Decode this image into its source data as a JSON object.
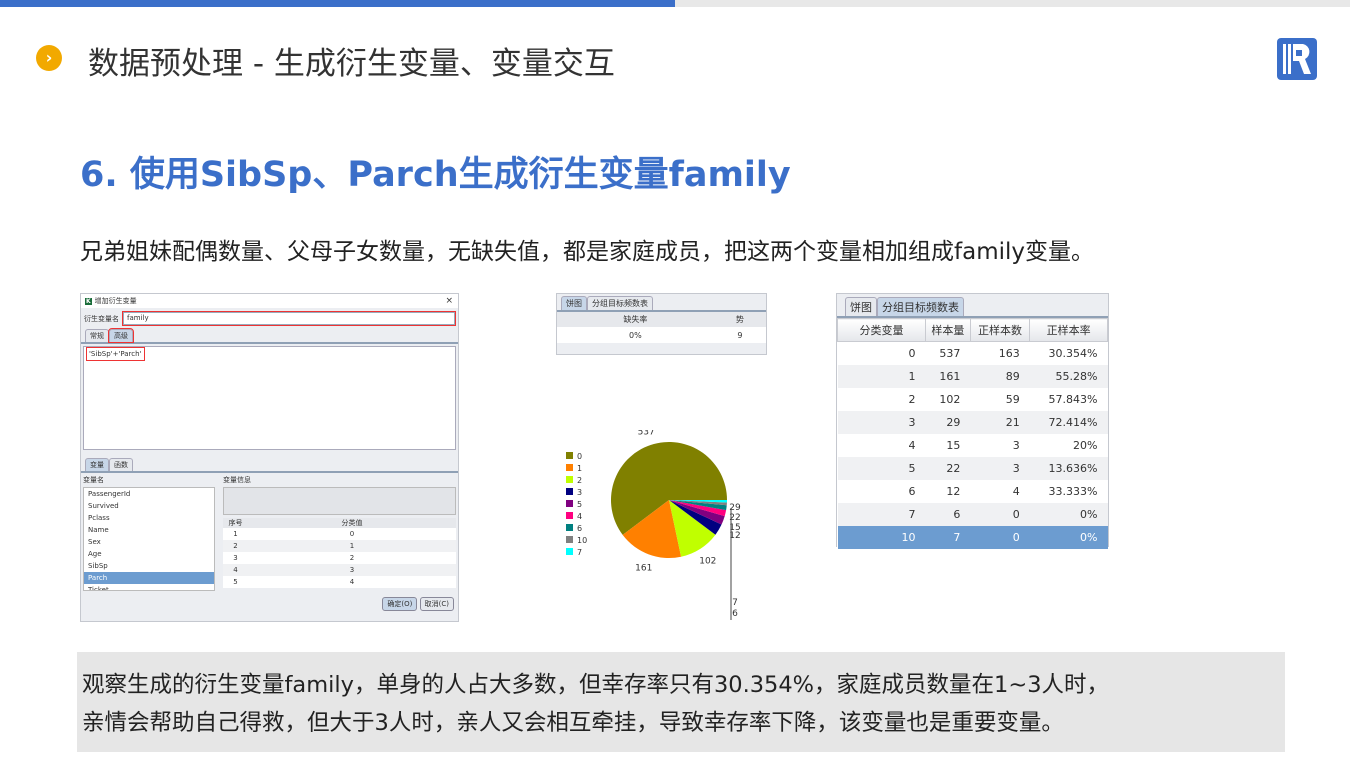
{
  "header": {
    "title": "数据预处理 - 生成衍生变量、变量交互",
    "bullet_icon": "chevron-right-icon",
    "logo_icon": "r-logo"
  },
  "section_title": "6. 使用SibSp、Parch生成衍生变量family",
  "intro": "兄弟姐妹配偶数量、父母子女数量，无缺失值，都是家庭成员，把这两个变量相加组成family变量。",
  "dialog": {
    "title": "增加衍生变量",
    "name_label": "衍生变量名",
    "name_value": "family",
    "tabs": [
      "常规",
      "高级"
    ],
    "expression": "'SibSp'+'Parch'",
    "bottom_tabs": [
      "变量",
      "函数"
    ],
    "var_list_header": "变量名",
    "var_info_header": "变量信息",
    "variables": [
      "PassengerId",
      "Survived",
      "Pclass",
      "Name",
      "Sex",
      "Age",
      "SibSp",
      "Parch",
      "Ticket"
    ],
    "selected_variable": "Parch",
    "value_table": {
      "headers": [
        "序号",
        "分类值"
      ],
      "rows": [
        [
          "1",
          "0"
        ],
        [
          "2",
          "1"
        ],
        [
          "3",
          "2"
        ],
        [
          "4",
          "3"
        ],
        [
          "5",
          "4"
        ]
      ]
    },
    "ok": "确定(O)",
    "cancel": "取消(C)"
  },
  "pie_panel": {
    "tabs": [
      "饼图",
      "分组目标频数表"
    ],
    "headers": [
      "缺失率",
      "势"
    ],
    "values": [
      "0%",
      "9"
    ]
  },
  "chart_data": {
    "type": "pie",
    "categories": [
      "0",
      "1",
      "2",
      "3",
      "5",
      "4",
      "6",
      "10",
      "7"
    ],
    "values": [
      537,
      161,
      102,
      29,
      22,
      15,
      12,
      7,
      6
    ],
    "colors": [
      "#808000",
      "#ff8000",
      "#c0ff00",
      "#000080",
      "#800080",
      "#ff0080",
      "#008080",
      "#808080",
      "#00ffff"
    ],
    "data_labels": [
      "537",
      "161",
      "102",
      "29",
      "22",
      "15",
      "12",
      "7",
      "6"
    ],
    "legend": "left"
  },
  "freq_panel": {
    "tabs": [
      "饼图",
      "分组目标频数表"
    ],
    "headers": [
      "分类变量",
      "样本量",
      "正样本数",
      "正样本率"
    ],
    "rows": [
      [
        "0",
        "537",
        "163",
        "30.354%"
      ],
      [
        "1",
        "161",
        "89",
        "55.28%"
      ],
      [
        "2",
        "102",
        "59",
        "57.843%"
      ],
      [
        "3",
        "29",
        "21",
        "72.414%"
      ],
      [
        "4",
        "15",
        "3",
        "20%"
      ],
      [
        "5",
        "22",
        "3",
        "13.636%"
      ],
      [
        "6",
        "12",
        "4",
        "33.333%"
      ],
      [
        "7",
        "6",
        "0",
        "0%"
      ],
      [
        "10",
        "7",
        "0",
        "0%"
      ]
    ],
    "selected_row": "10"
  },
  "summary": [
    "观察生成的衍生变量family，单身的人占大多数，但幸存率只有30.354%，家庭成员数量在1~3人时，",
    "亲情会帮助自己得救，但大于3人时，亲人又会相互牵挂，导致幸存率下降，该变量也是重要变量。"
  ]
}
